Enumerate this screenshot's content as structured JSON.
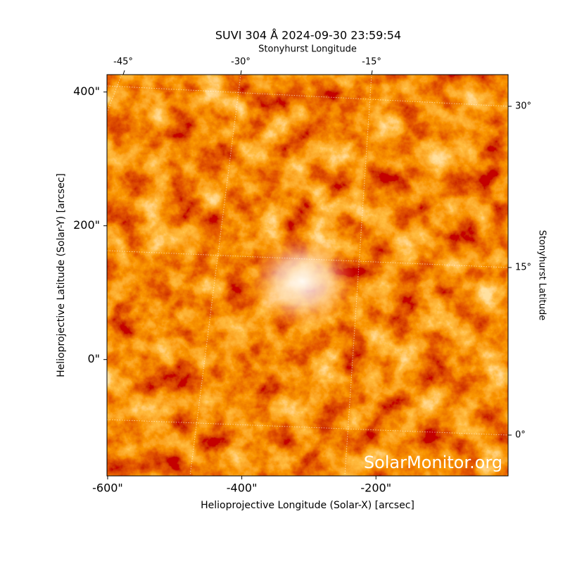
{
  "chart_data": {
    "type": "image",
    "title": "SUVI 304 Å 2024-09-30 23:59:54",
    "xlabel": "Helioprojective Longitude (Solar-X) [arcsec]",
    "ylabel": "Helioprojective Latitude (Solar-Y) [arcsec]",
    "xlim": [
      -601,
      -3
    ],
    "ylim": [
      -174,
      426
    ],
    "xticks": [
      {
        "value": -600,
        "label": "-600\""
      },
      {
        "value": -400,
        "label": "-400\""
      },
      {
        "value": -200,
        "label": "-200\""
      }
    ],
    "yticks": [
      {
        "value": 0,
        "label": "0\""
      },
      {
        "value": 200,
        "label": "200\""
      },
      {
        "value": 400,
        "label": "400\""
      }
    ],
    "top_axis": {
      "label": "Stonyhurst Longitude",
      "ticks": [
        {
          "value": -45,
          "label": "-45°"
        },
        {
          "value": -30,
          "label": "-30°"
        },
        {
          "value": -15,
          "label": "-15°"
        }
      ]
    },
    "right_axis": {
      "label": "Stonyhurst Latitude",
      "ticks": [
        {
          "value": 30,
          "label": "30°"
        },
        {
          "value": 15,
          "label": "15°"
        },
        {
          "value": 0,
          "label": "0°"
        }
      ]
    },
    "watermark": "SolarMonitor.org"
  }
}
